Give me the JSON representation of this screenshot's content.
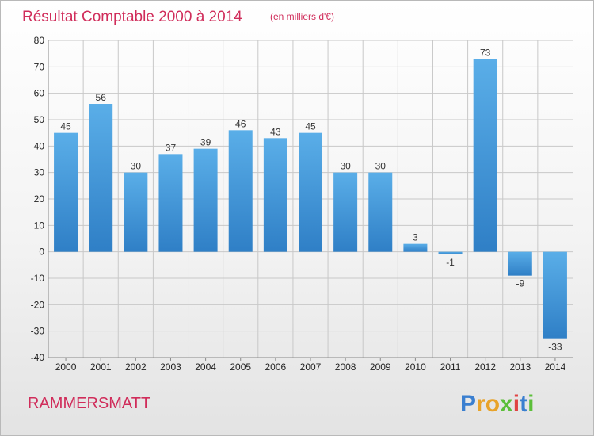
{
  "chart_data": {
    "type": "bar",
    "title": "Résultat Comptable 2000 à 2014",
    "subtitle": "(en milliers d'€)",
    "categories": [
      "2000",
      "2001",
      "2002",
      "2003",
      "2004",
      "2005",
      "2006",
      "2007",
      "2008",
      "2009",
      "2010",
      "2011",
      "2012",
      "2013",
      "2014"
    ],
    "values": [
      45,
      56,
      30,
      37,
      39,
      46,
      43,
      45,
      30,
      30,
      3,
      -1,
      73,
      -9,
      -33
    ],
    "ylim": [
      -40,
      80
    ],
    "yticks": [
      80,
      70,
      60,
      50,
      40,
      30,
      20,
      10,
      0,
      -10,
      -20,
      -30,
      -40
    ],
    "grid": true,
    "bar_color_top": "#5aaee8",
    "bar_color_bottom": "#2f7fc6"
  },
  "commune": "RAMMERSMATT",
  "logo": {
    "letters": [
      "P",
      "r",
      "o",
      "x",
      "i",
      "t",
      "i"
    ],
    "colors": [
      "#3a7fd0",
      "#e8a32a",
      "#e8a32a",
      "#5cbf3a",
      "#e04343",
      "#3a7fd0",
      "#5cbf3a"
    ]
  }
}
